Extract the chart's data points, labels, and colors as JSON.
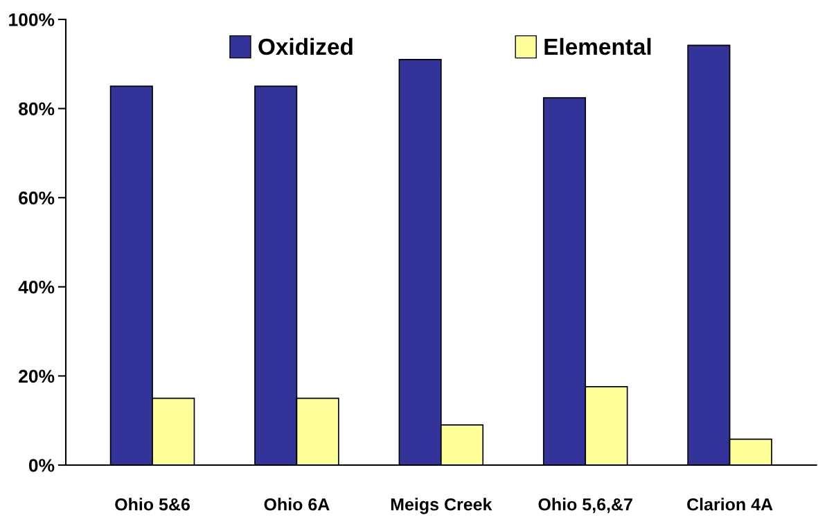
{
  "chart_data": {
    "type": "bar",
    "categories": [
      "Ohio 5&6",
      "Ohio 6A",
      "Meigs Creek",
      "Ohio 5,6,&7",
      "Clarion 4A"
    ],
    "series": [
      {
        "name": "Oxidized",
        "color": "#333399",
        "values": [
          85,
          85,
          91,
          82.4,
          94.2
        ]
      },
      {
        "name": "Elemental",
        "color": "#ffff99",
        "values": [
          15,
          15,
          9,
          17.6,
          5.8
        ]
      }
    ],
    "ylim": [
      0,
      100
    ],
    "yticks": [
      {
        "value": 0,
        "label": "0%"
      },
      {
        "value": 20,
        "label": "20%"
      },
      {
        "value": 40,
        "label": "40%"
      },
      {
        "value": 60,
        "label": "60%"
      },
      {
        "value": 80,
        "label": "80%"
      },
      {
        "value": 100,
        "label": "100%"
      }
    ],
    "grid": false,
    "legend": "top"
  }
}
